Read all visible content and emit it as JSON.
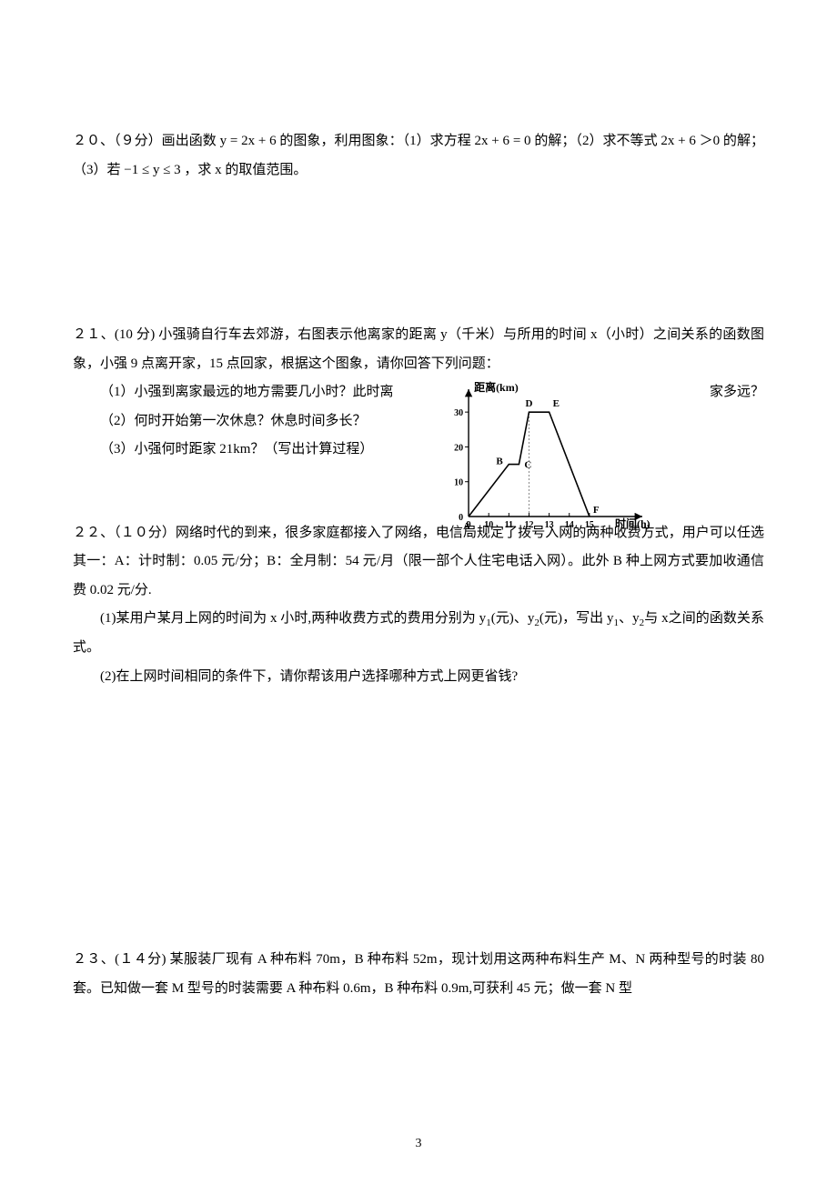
{
  "q20": {
    "text": "２０、（９分）画出函数 y = 2x + 6 的图象，利用图象：（1）求方程 2x + 6 = 0 的解；（2）求不等式 2x + 6 ＞0 的解；（3）若 −1 ≤ y ≤ 3 ，求 x 的取值范围。"
  },
  "q21": {
    "head": "２１、(10 分) 小强骑自行车去郊游，右图表示他离家的距离 y（千米）与所用的时间 x（小时）之间关系的函数图象，小强 9 点离开家，15 点回家，根据这个图象，请你回答下列问题：",
    "p1_left": "（1）小强到离家最远的地方需要几小时？此时离",
    "p1_right": "家多远？",
    "p2": "（2）何时开始第一次休息？休息时间多长？",
    "p3": "（3）小强何时距家 21km？（写出计算过程）"
  },
  "q22": {
    "head": "２２、（１０分）网络时代的到来，很多家庭都接入了网络，电信局规定了拨号入网的两种收费方式，用户可以任选其一：A：计时制：0.05 元/分；B：全月制：54 元/月（限一部个人住宅电话入网）。此外 B 种上网方式要加收通信费 0.02 元/分.",
    "p1_a": "(1)某用户某月上网的时间为 x 小时,两种收费方式的费用分别为 y",
    "p1_b": "(元)、y",
    "p1_c": "(元)，写出 y",
    "p1_d": "、y",
    "p1_e": "与 x之间的函数关系式。",
    "sub1": "1",
    "sub2": "2",
    "p2": "(2)在上网时间相同的条件下，请你帮该用户选择哪种方式上网更省钱?"
  },
  "q23": {
    "text": "２３、(１４分) 某服装厂现有 A 种布料 70m，B 种布料 52m，现计划用这两种布料生产 M、N 两种型号的时装 80 套。已知做一套 M 型号的时装需要 A 种布料 0.6m，B 种布料 0.9m,可获利 45 元；做一套 N 型"
  },
  "pageNumber": "3",
  "chart": {
    "axis_y_label": "距离(km)",
    "axis_x_label": "时间(h)",
    "y_ticks": [
      0,
      10,
      20,
      30
    ],
    "x_ticks": [
      9,
      10,
      11,
      12,
      13,
      14,
      15
    ],
    "y_max": 35,
    "x_min": 8.5,
    "x_max": 16,
    "points": {
      "A": {
        "x": 9,
        "y": 0,
        "label": "A",
        "label_dx": -6,
        "label_dy": 14
      },
      "B": {
        "x": 11,
        "y": 15,
        "label": "B",
        "label_dx": -14,
        "label_dy": 0
      },
      "C": {
        "x": 11.5,
        "y": 15,
        "label": "C",
        "label_dx": 6,
        "label_dy": 4
      },
      "D": {
        "x": 12,
        "y": 30,
        "label": "D",
        "label_dx": -4,
        "label_dy": -6
      },
      "E": {
        "x": 13,
        "y": 30,
        "label": "E",
        "label_dx": 4,
        "label_dy": -6
      },
      "F": {
        "x": 15,
        "y": 0,
        "label": "F",
        "label_dx": 4,
        "label_dy": -4
      }
    },
    "line_color": "#000000",
    "axis_color": "#000000",
    "dotted_color": "#888888",
    "tick_fontsize": 10,
    "label_fontsize": 11,
    "axis_label_fontsize": 12,
    "line_width": 1.6,
    "axis_width": 1.4,
    "tick_len": 4
  }
}
